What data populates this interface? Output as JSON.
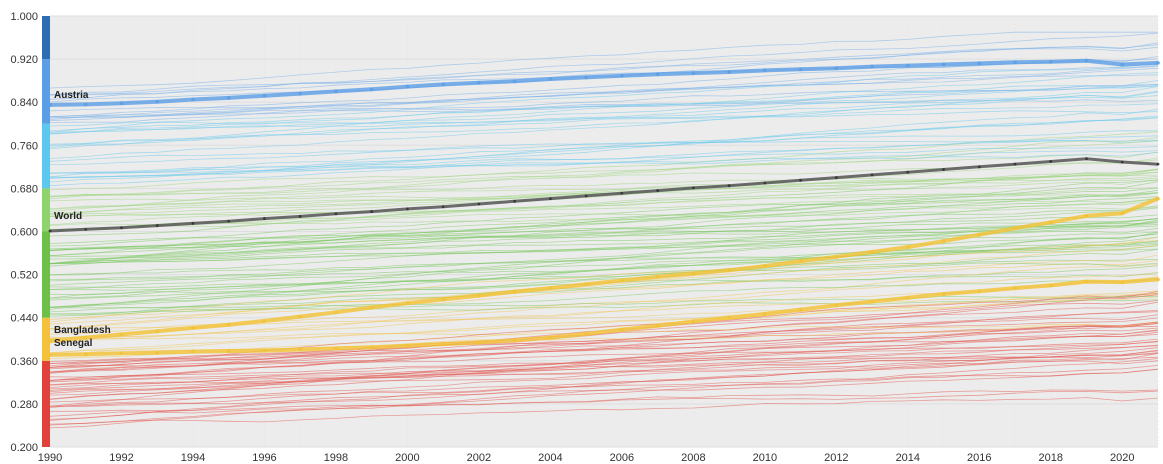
{
  "chart_data": {
    "type": "line",
    "title": "",
    "xlabel": "",
    "ylabel": "",
    "xlim": [
      1990,
      2021
    ],
    "ylim": [
      0.2,
      1.0
    ],
    "grid": true,
    "x": [
      1990,
      1991,
      1992,
      1993,
      1994,
      1995,
      1996,
      1997,
      1998,
      1999,
      2000,
      2001,
      2002,
      2003,
      2004,
      2005,
      2006,
      2007,
      2008,
      2009,
      2010,
      2011,
      2012,
      2013,
      2014,
      2015,
      2016,
      2017,
      2018,
      2019,
      2020,
      2021
    ],
    "x_ticks": [
      "1990",
      "1992",
      "1994",
      "1996",
      "1998",
      "2000",
      "2002",
      "2004",
      "2006",
      "2008",
      "2010",
      "2012",
      "2014",
      "2016",
      "2018",
      "2020"
    ],
    "y_ticks": [
      "0.200",
      "0.280",
      "0.360",
      "0.440",
      "0.520",
      "0.600",
      "0.680",
      "0.760",
      "0.840",
      "0.920",
      "1.000"
    ],
    "color_bands": [
      {
        "from": 0.2,
        "to": 0.36,
        "color": "#e0413a"
      },
      {
        "from": 0.36,
        "to": 0.44,
        "color": "#f3c13c"
      },
      {
        "from": 0.44,
        "to": 0.6,
        "color": "#6cc04a"
      },
      {
        "from": 0.6,
        "to": 0.68,
        "color": "#8fd36e"
      },
      {
        "from": 0.68,
        "to": 0.8,
        "color": "#5cc8ee"
      },
      {
        "from": 0.8,
        "to": 0.92,
        "color": "#5b9ee6"
      },
      {
        "from": 0.92,
        "to": 1.0,
        "color": "#2d6bb3"
      }
    ],
    "series": [
      {
        "name": "Austria",
        "color": "#5b9ee6",
        "values": [
          0.835,
          0.836,
          0.838,
          0.841,
          0.845,
          0.848,
          0.852,
          0.856,
          0.86,
          0.864,
          0.869,
          0.873,
          0.876,
          0.879,
          0.883,
          0.886,
          0.889,
          0.892,
          0.894,
          0.896,
          0.899,
          0.901,
          0.903,
          0.906,
          0.908,
          0.91,
          0.912,
          0.914,
          0.915,
          0.917,
          0.91,
          0.913
        ]
      },
      {
        "name": "World",
        "color": "#555555",
        "values": [
          0.601,
          0.604,
          0.607,
          0.611,
          0.615,
          0.619,
          0.624,
          0.628,
          0.633,
          0.637,
          0.642,
          0.646,
          0.651,
          0.656,
          0.661,
          0.666,
          0.671,
          0.676,
          0.681,
          0.685,
          0.69,
          0.695,
          0.7,
          0.705,
          0.71,
          0.715,
          0.72,
          0.725,
          0.73,
          0.735,
          0.729,
          0.725
        ]
      },
      {
        "name": "Bangladesh",
        "color": "#f2c233",
        "values": [
          0.397,
          0.403,
          0.409,
          0.415,
          0.421,
          0.427,
          0.434,
          0.442,
          0.45,
          0.459,
          0.467,
          0.474,
          0.481,
          0.488,
          0.495,
          0.502,
          0.509,
          0.516,
          0.522,
          0.528,
          0.536,
          0.545,
          0.553,
          0.562,
          0.571,
          0.582,
          0.594,
          0.606,
          0.617,
          0.629,
          0.634,
          0.661
        ]
      },
      {
        "name": "Senegal",
        "color": "#f2c233",
        "values": [
          0.371,
          0.372,
          0.374,
          0.375,
          0.377,
          0.378,
          0.379,
          0.381,
          0.383,
          0.385,
          0.388,
          0.391,
          0.394,
          0.398,
          0.403,
          0.41,
          0.418,
          0.425,
          0.433,
          0.44,
          0.447,
          0.455,
          0.463,
          0.47,
          0.477,
          0.484,
          0.489,
          0.495,
          0.5,
          0.507,
          0.506,
          0.511
        ]
      }
    ]
  }
}
